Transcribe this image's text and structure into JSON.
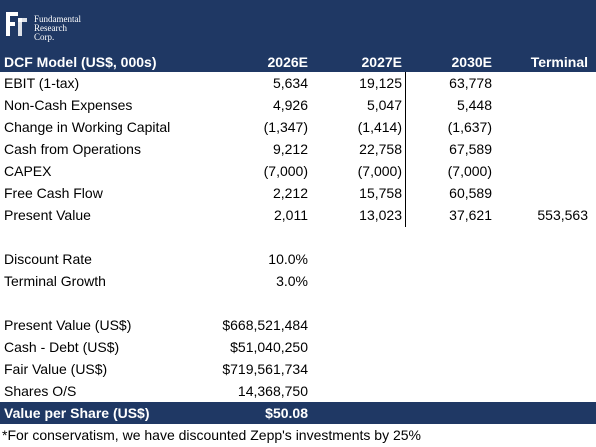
{
  "logo": {
    "line1": "Fundamental",
    "line2": "Research",
    "line3": "Corp."
  },
  "header": {
    "title": "DCF Model (US$, 000s)",
    "columns": [
      "2026E",
      "2027E",
      "2030E",
      "Terminal"
    ]
  },
  "rows": [
    {
      "label": "EBIT (1-tax)",
      "values": [
        "5,634",
        "19,125",
        "63,778",
        ""
      ]
    },
    {
      "label": "Non-Cash Expenses",
      "values": [
        "4,926",
        "5,047",
        "5,448",
        ""
      ]
    },
    {
      "label": "Change in Working Capital",
      "values": [
        "(1,347)",
        "(1,414)",
        "(1,637)",
        ""
      ]
    },
    {
      "label": "Cash from Operations",
      "values": [
        "9,212",
        "22,758",
        "67,589",
        ""
      ]
    },
    {
      "label": "CAPEX",
      "values": [
        "(7,000)",
        "(7,000)",
        "(7,000)",
        ""
      ]
    },
    {
      "label": "Free Cash Flow",
      "values": [
        "2,212",
        "15,758",
        "60,589",
        ""
      ]
    },
    {
      "label": "Present Value",
      "values": [
        "2,011",
        "13,023",
        "37,621",
        "553,563"
      ]
    }
  ],
  "assumptions": [
    {
      "label": "Discount Rate",
      "value": "10.0%"
    },
    {
      "label": "Terminal Growth",
      "value": "3.0%"
    }
  ],
  "valuation": [
    {
      "label": "Present Value (US$)",
      "value": "$668,521,484"
    },
    {
      "label": "Cash - Debt (US$)",
      "value": "$51,040,250"
    },
    {
      "label": "Fair Value (US$)",
      "value": "$719,561,734"
    },
    {
      "label": "Shares O/S",
      "value": "14,368,750"
    }
  ],
  "value_per_share": {
    "label": "Value per Share (US$)",
    "value": "$50.08"
  },
  "footnote": "*For conservatism, we have discounted Zepp's investments by 25%",
  "colors": {
    "band": "#1f3864",
    "text": "#000000"
  }
}
